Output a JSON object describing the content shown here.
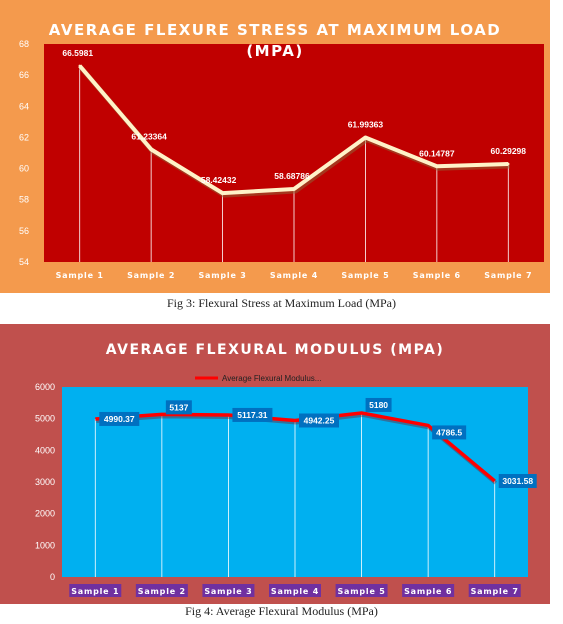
{
  "charts": [
    {
      "title_line1": "AVERAGE FLEXURE STRESS AT MAXIMUM  LOAD",
      "title_line2": "(MPA)",
      "caption": "Fig 3: Flexural Stress at Maximum Load (MPa)",
      "colors": {
        "outer": "#f49a4d",
        "plot": "#c00000",
        "line": "#fff2c8",
        "grid": "#ffffff"
      }
    },
    {
      "title": "AVERAGE FLEXURAL  MODULUS (MPA)",
      "legend": "Average Flexural Modulus...",
      "caption": "Fig 4: Average Flexural Modulus (MPa)",
      "colors": {
        "outer": "#c0504d",
        "plot": "#00b0f0",
        "line": "#ff0000",
        "label_bg": "#0070c0",
        "cat_bg": "#7030a0"
      }
    }
  ],
  "chart_data": [
    {
      "type": "line",
      "title": "AVERAGE FLEXURE STRESS AT MAXIMUM  LOAD (MPA)",
      "categories": [
        "Sample 1",
        "Sample 2",
        "Sample 3",
        "Sample 4",
        "Sample 5",
        "Sample 6",
        "Sample 7"
      ],
      "values": [
        66.5981,
        61.23364,
        58.42432,
        58.68786,
        61.99363,
        60.14787,
        60.29298
      ],
      "labels": [
        "66.5981",
        "61.23364",
        "58.42432",
        "58.68786",
        "61.99363",
        "60.14787",
        "60.29298"
      ],
      "ylim": [
        54,
        68
      ],
      "yticks": [
        54,
        56,
        58,
        60,
        62,
        64,
        66,
        68
      ],
      "grid": false
    },
    {
      "type": "line",
      "title": "AVERAGE FLEXURAL  MODULUS (MPA)",
      "categories": [
        "Sample 1",
        "Sample 2",
        "Sample 3",
        "Sample 4",
        "Sample 5",
        "Sample 6",
        "Sample 7"
      ],
      "series": [
        {
          "name": "Average Flexural Modulus...",
          "values": [
            4990.37,
            5137,
            5117.31,
            4942.25,
            5180,
            4786.5,
            3031.58
          ]
        }
      ],
      "labels": [
        "4990.37",
        "5137",
        "5117.31",
        "4942.25",
        "5180",
        "4786.5",
        "3031.58"
      ],
      "ylim": [
        0,
        6000
      ],
      "yticks": [
        0,
        1000,
        2000,
        3000,
        4000,
        5000,
        6000
      ],
      "legend_position": "top",
      "grid": false
    }
  ]
}
